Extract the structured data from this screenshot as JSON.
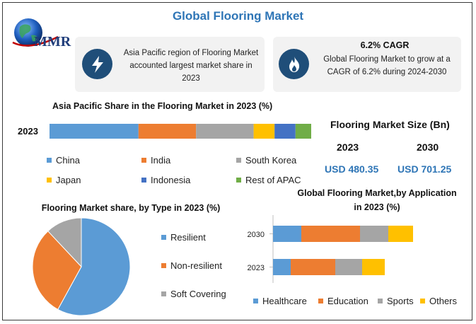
{
  "title": "Global Flooring Market",
  "logo": {
    "text": "MMR"
  },
  "cards": [
    {
      "icon": "lightning-icon",
      "text": "Asia Pacific region of Flooring Market accounted largest market share in 2023"
    },
    {
      "icon": "flame-icon",
      "heading": "6.2% CAGR",
      "text": "Global Flooring Market to grow at a CAGR of 6.2% during 2024-2030"
    }
  ],
  "colors": {
    "blue": "#5b9bd5",
    "orange": "#ed7d31",
    "gray": "#a5a5a5",
    "yellow": "#ffc000",
    "darkblue": "#4472c4",
    "green": "#70ad47",
    "accent": "#2e75b6"
  },
  "market_size": {
    "heading": "Flooring Market Size (Bn)",
    "years": [
      "2023",
      "2030"
    ],
    "values": [
      "USD 480.35",
      "USD 701.25"
    ]
  },
  "chart_data": [
    {
      "type": "bar",
      "orientation": "horizontal-stacked",
      "title": "Asia Pacific Share in the Flooring Market in 2023 (%)",
      "categories": [
        "2023"
      ],
      "series": [
        {
          "name": "China",
          "values": [
            34
          ]
        },
        {
          "name": "India",
          "values": [
            22
          ]
        },
        {
          "name": "South Korea",
          "values": [
            22
          ]
        },
        {
          "name": "Japan",
          "values": [
            8
          ]
        },
        {
          "name": "Indonesia",
          "values": [
            8
          ]
        },
        {
          "name": "Rest of APAC",
          "values": [
            6
          ]
        }
      ],
      "legend_position": "bottom"
    },
    {
      "type": "pie",
      "title": "Flooring Market share, by Type in 2023 (%)",
      "slices": [
        {
          "name": "Resilient",
          "value": 58
        },
        {
          "name": "Non-resilient",
          "value": 30
        },
        {
          "name": "Soft Covering",
          "value": 12
        }
      ],
      "legend_position": "right"
    },
    {
      "type": "bar",
      "orientation": "horizontal-stacked",
      "title": "Global Flooring Market,by Application in 2023 (%)",
      "categories": [
        "2030",
        "2023"
      ],
      "series": [
        {
          "name": "Healthcare",
          "values": [
            40,
            25
          ]
        },
        {
          "name": "Education",
          "values": [
            83,
            63
          ]
        },
        {
          "name": "Sports",
          "values": [
            40,
            38
          ]
        },
        {
          "name": "Others",
          "values": [
            35,
            32
          ]
        }
      ],
      "legend_position": "bottom"
    }
  ]
}
